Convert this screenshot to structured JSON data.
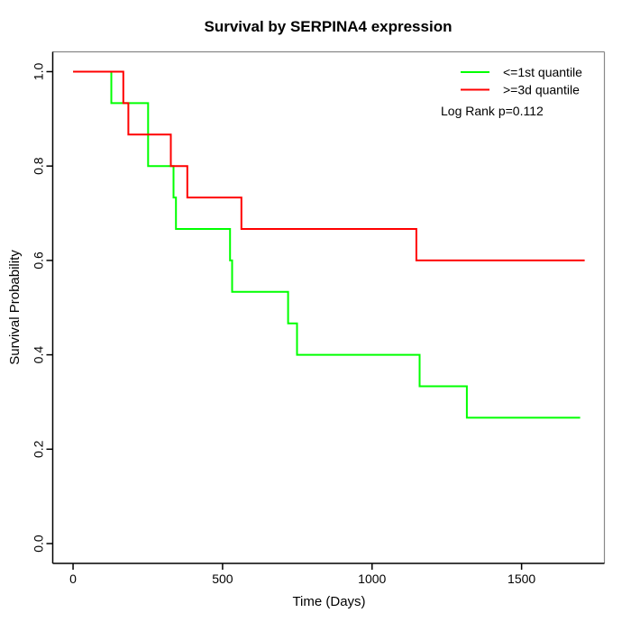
{
  "title": "Survival by SERPINA4 expression",
  "axes": {
    "xlabel": "Time (Days)",
    "ylabel": "Survival Probability",
    "xticks": [
      {
        "value": 0,
        "label": "0"
      },
      {
        "value": 500,
        "label": "500"
      },
      {
        "value": 1000,
        "label": "1000"
      },
      {
        "value": 1500,
        "label": "1500"
      }
    ],
    "yticks": [
      {
        "value": 0.0,
        "label": "0.0"
      },
      {
        "value": 0.2,
        "label": "0.2"
      },
      {
        "value": 0.4,
        "label": "0.4"
      },
      {
        "value": 0.6,
        "label": "0.6"
      },
      {
        "value": 0.8,
        "label": "0.8"
      },
      {
        "value": 1.0,
        "label": "1.0"
      }
    ]
  },
  "legend": {
    "items": [
      {
        "label": "<=1st quantile",
        "color": "#00FF00"
      },
      {
        "label": ">=3d quantile",
        "color": "#FF0000"
      }
    ],
    "note": "Log Rank p=0.112"
  },
  "colors": {
    "low_group": "#00FF00",
    "high_group": "#FF0000",
    "axis": "#000000",
    "border_gray": "#888888",
    "background": "#ffffff"
  },
  "chart_data": {
    "type": "line",
    "variant": "step-after",
    "title": "Survival by SERPINA4 expression",
    "xlabel": "Time (Days)",
    "ylabel": "Survival Probability",
    "xlim": [
      -68,
      1777
    ],
    "ylim": [
      -0.042,
      1.042
    ],
    "xtick_values": [
      0,
      500,
      1000,
      1500
    ],
    "ytick_values": [
      0.0,
      0.2,
      0.4,
      0.6,
      0.8,
      1.0
    ],
    "grid": false,
    "legend_position": "top-right-inside",
    "series": [
      {
        "name": "<=1st quantile",
        "color": "#00FF00",
        "points": [
          [
            0,
            1.0
          ],
          [
            128,
            0.9333
          ],
          [
            251,
            0.8
          ],
          [
            336,
            0.7333
          ],
          [
            344,
            0.6667
          ],
          [
            525,
            0.6
          ],
          [
            532,
            0.5333
          ],
          [
            719,
            0.4667
          ],
          [
            749,
            0.4
          ],
          [
            1159,
            0.3333
          ],
          [
            1317,
            0.2667
          ],
          [
            1696,
            0.2667
          ]
        ]
      },
      {
        "name": ">=3d quantile",
        "color": "#FF0000",
        "points": [
          [
            0,
            1.0
          ],
          [
            168,
            0.9333
          ],
          [
            185,
            0.8667
          ],
          [
            327,
            0.8
          ],
          [
            382,
            0.7333
          ],
          [
            563,
            0.6667
          ],
          [
            1148,
            0.6
          ],
          [
            1711,
            0.6
          ]
        ]
      }
    ],
    "annotation": "Log Rank p=0.112"
  }
}
